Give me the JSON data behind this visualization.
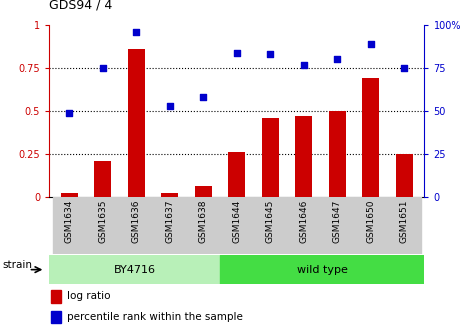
{
  "title": "GDS94 / 4",
  "categories": [
    "GSM1634",
    "GSM1635",
    "GSM1636",
    "GSM1637",
    "GSM1638",
    "GSM1644",
    "GSM1645",
    "GSM1646",
    "GSM1647",
    "GSM1650",
    "GSM1651"
  ],
  "log_ratio": [
    0.02,
    0.21,
    0.86,
    0.02,
    0.06,
    0.26,
    0.46,
    0.47,
    0.5,
    0.69,
    0.25
  ],
  "percentile_rank": [
    49,
    75,
    96,
    53,
    58,
    84,
    83,
    77,
    80,
    89,
    75
  ],
  "bar_color": "#cc0000",
  "dot_color": "#0000cc",
  "left_ytick_labels": [
    "0",
    "0.25",
    "0.5",
    "0.75",
    "1"
  ],
  "left_ytick_vals": [
    0,
    0.25,
    0.5,
    0.75,
    1.0
  ],
  "right_ytick_labels": [
    "0",
    "25",
    "50",
    "75",
    "100%"
  ],
  "right_ytick_vals": [
    0,
    25,
    50,
    75,
    100
  ],
  "ylim_left": [
    0,
    1.0
  ],
  "ylim_right": [
    0,
    100
  ],
  "by4716_color": "#b8f0b8",
  "wildtype_color": "#44dd44",
  "strain_label": "strain",
  "legend_items": [
    {
      "color": "#cc0000",
      "label": "log ratio"
    },
    {
      "color": "#0000cc",
      "label": "percentile rank within the sample"
    }
  ],
  "bg_color": "#ffffff",
  "tick_label_bg": "#cccccc",
  "by4716_count": 5,
  "wildtype_count": 6
}
